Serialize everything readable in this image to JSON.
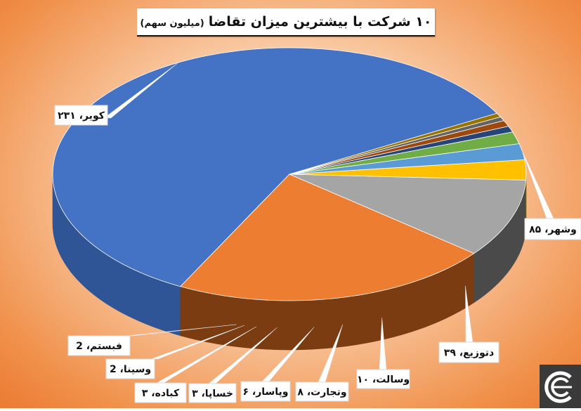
{
  "title": "۱۰ شرکت با بیشترین میزان تقاضا",
  "unit": "(میلیون سهم)",
  "chart_data": {
    "type": "pie",
    "title": "۱۰ شرکت با بیشترین میزان تقاضا (میلیون سهم)",
    "slices": [
      {
        "name": "کویر",
        "value": 231,
        "label": "کویر، ۲۳۱",
        "color": "#4472c4",
        "side": "#2f5597"
      },
      {
        "name": "وشهر",
        "value": 85,
        "label": "وشهر، ۸۵",
        "color": "#ed7d31",
        "side": "#7a3c10"
      },
      {
        "name": "دتوزیع",
        "value": 39,
        "label": "دتوزیع، ۳۹",
        "color": "#a5a5a5",
        "side": "#4a4a4a"
      },
      {
        "name": "وسالت",
        "value": 10,
        "label": "وسالت، ۱۰",
        "color": "#ffc000",
        "side": "#7f6000"
      },
      {
        "name": "وتجارت",
        "value": 8,
        "label": "وتجارت، ۸",
        "color": "#5b9bd5",
        "side": "#1f4e79"
      },
      {
        "name": "وپاسار",
        "value": 6,
        "label": "وپاسار، ۶",
        "color": "#70ad47",
        "side": "#375623"
      },
      {
        "name": "خساپا",
        "value": 3,
        "label": "خساپا، ۳",
        "color": "#264478",
        "side": "#152a4a"
      },
      {
        "name": "کباده",
        "value": 3,
        "label": "کباده، ۳",
        "color": "#9e480e",
        "side": "#5c2a08"
      },
      {
        "name": "وسینا",
        "value": 2,
        "label": "وسینا، 2",
        "color": "#636363",
        "side": "#333333"
      },
      {
        "name": "فبستم",
        "value": 2,
        "label": "فبستم، 2",
        "color": "#997300",
        "side": "#5a4400"
      }
    ]
  }
}
